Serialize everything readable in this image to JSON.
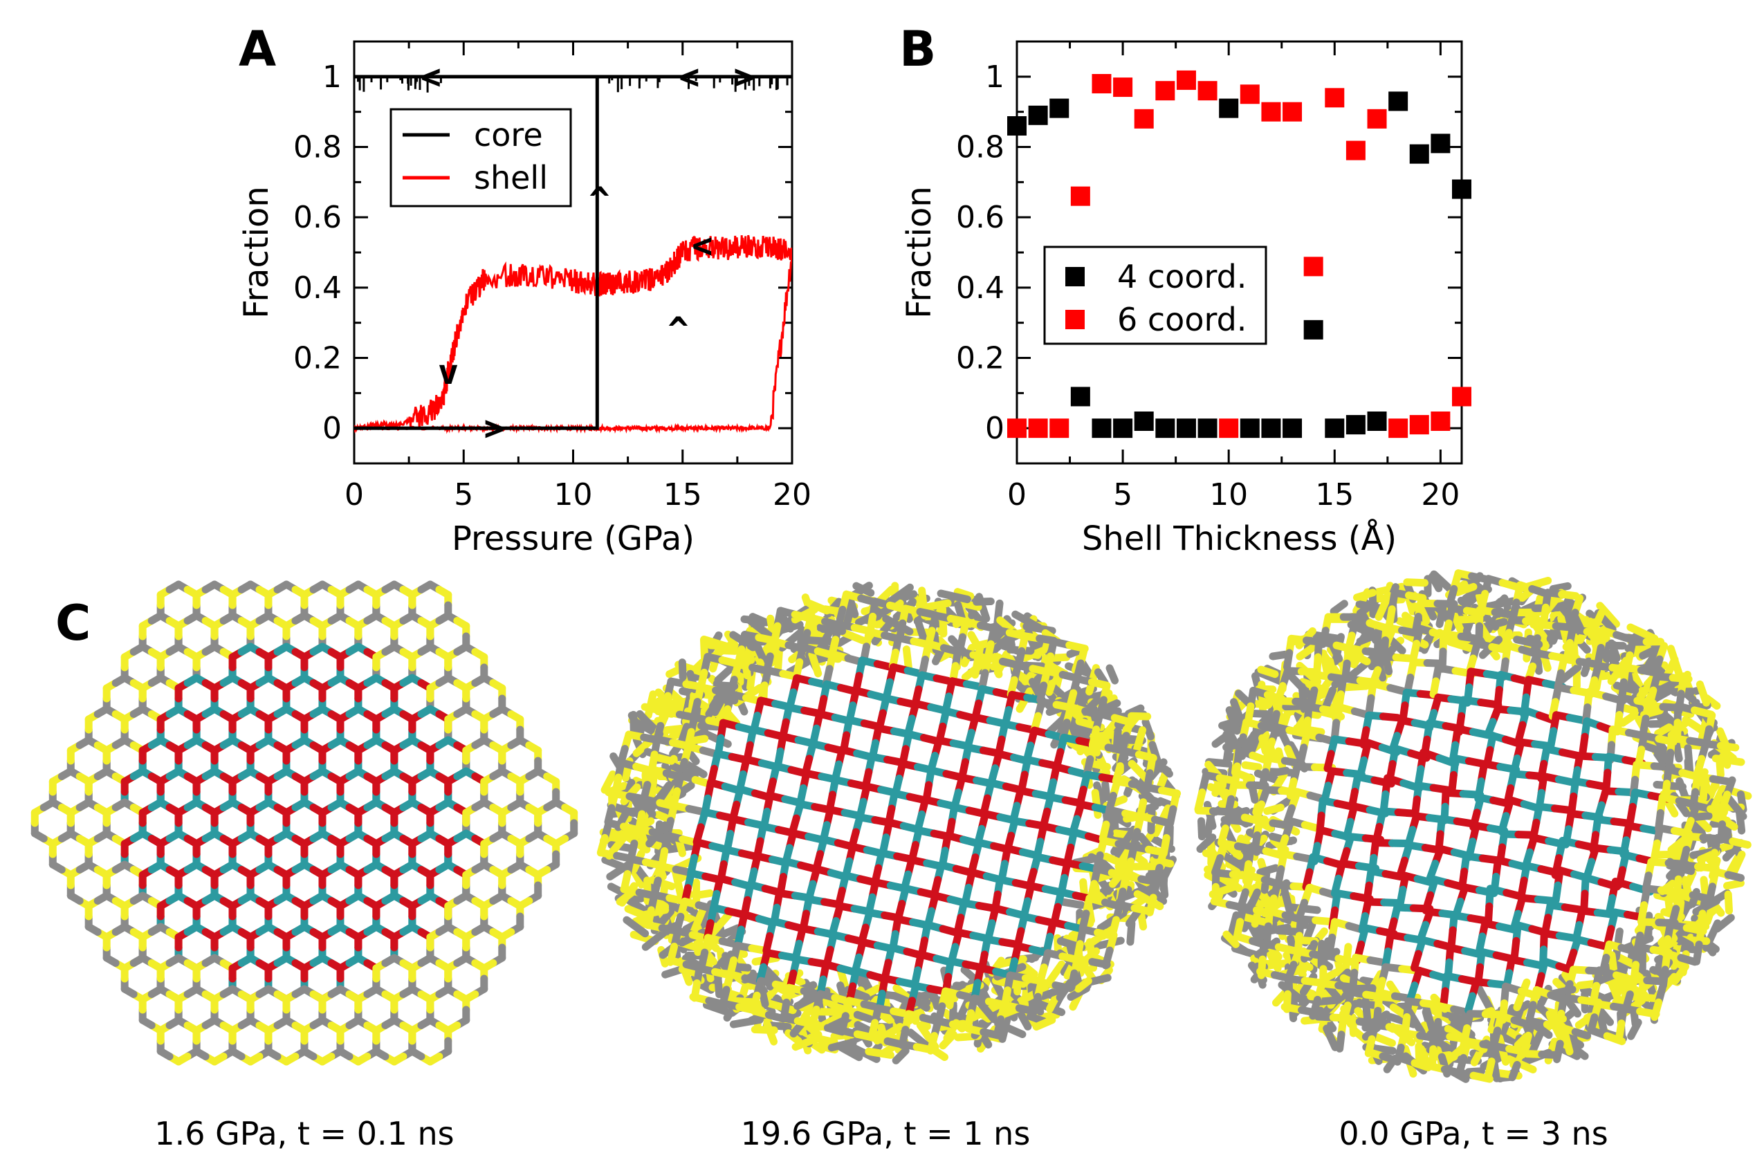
{
  "panels": {
    "a": {
      "letter": "A"
    },
    "b": {
      "letter": "B"
    },
    "c": {
      "letter": "C"
    }
  },
  "chart_data": [
    {
      "type": "line",
      "panel": "A",
      "xlabel": "Pressure (GPa)",
      "ylabel": "Fraction",
      "xlim": [
        0,
        20
      ],
      "ylim": [
        -0.1,
        1.1
      ],
      "xticks": [
        0,
        5,
        10,
        15,
        20
      ],
      "yticks": [
        0,
        0.2,
        0.4,
        0.6,
        0.8,
        1
      ],
      "xtick_labels": [
        "0",
        "5",
        "10",
        "15",
        "20"
      ],
      "ytick_labels": [
        "0",
        "0.2",
        "0.4",
        "0.6",
        "0.8",
        "1"
      ],
      "legend": "top-left",
      "colors": {
        "core": "#000000",
        "shell": "#ff0000"
      },
      "series": [
        {
          "name": "core",
          "color": "#000000",
          "x": [
            0,
            11.1,
            11.1,
            20,
            20,
            11.3,
            11.3,
            0
          ],
          "y": [
            0,
            0,
            1,
            1,
            1,
            1,
            1,
            1
          ]
        },
        {
          "name": "shell",
          "color": "#ff0000",
          "x": [
            0,
            4,
            4.5,
            5,
            6,
            7,
            8,
            9,
            10,
            11,
            12,
            13,
            14,
            15,
            16,
            17,
            18,
            19,
            20,
            19,
            18,
            17,
            16,
            15,
            14.5,
            14,
            13,
            12,
            11.5,
            11.1,
            10,
            8,
            6,
            5,
            4.3,
            4,
            3,
            2,
            1,
            0
          ],
          "y": [
            0,
            0,
            0,
            0,
            0,
            0,
            0,
            0,
            0,
            0,
            0,
            0,
            0,
            0,
            0,
            0,
            0,
            0,
            0.5,
            0.52,
            0.52,
            0.51,
            0.52,
            0.5,
            0.46,
            0.43,
            0.42,
            0.41,
            0.41,
            0.41,
            0.42,
            0.44,
            0.43,
            0.34,
            0.16,
            0.07,
            0.03,
            0.01,
            0.01,
            0.0
          ]
        }
      ],
      "arrows": [
        {
          "x": 3.5,
          "y": 1.0,
          "glyph": "<"
        },
        {
          "x": 15.3,
          "y": 1.0,
          "glyph": "<"
        },
        {
          "x": 17.8,
          "y": 1.0,
          "glyph": ">"
        },
        {
          "x": 6.4,
          "y": 0.0,
          "glyph": ">"
        },
        {
          "x": 4.3,
          "y": 0.16,
          "glyph": "v"
        },
        {
          "x": 14.8,
          "y": 0.28,
          "glyph": "^"
        },
        {
          "x": 11.2,
          "y": 0.65,
          "glyph": "^"
        },
        {
          "x": 15.9,
          "y": 0.52,
          "glyph": "<"
        }
      ]
    },
    {
      "type": "scatter",
      "panel": "B",
      "xlabel": "Shell Thickness (Å)",
      "ylabel": "Fraction",
      "xlim": [
        0,
        21
      ],
      "ylim": [
        -0.1,
        1.1
      ],
      "xticks": [
        0,
        5,
        10,
        15,
        20
      ],
      "yticks": [
        0,
        0.2,
        0.4,
        0.6,
        0.8,
        1
      ],
      "xtick_labels": [
        "0",
        "5",
        "10",
        "15",
        "20"
      ],
      "ytick_labels": [
        "0",
        "0.2",
        "0.4",
        "0.6",
        "0.8",
        "1"
      ],
      "legend": "center-left",
      "colors": {
        "4 coord.": "#000000",
        "6 coord.": "#ff0000"
      },
      "series": [
        {
          "name": "4 coord.",
          "color": "#000000",
          "x": [
            0,
            1,
            2,
            3,
            4,
            5,
            6,
            7,
            8,
            9,
            10,
            11,
            12,
            13,
            14,
            15,
            16,
            17,
            18,
            19,
            20,
            21
          ],
          "y": [
            0.86,
            0.89,
            0.91,
            0.09,
            0.0,
            0.0,
            0.02,
            0.0,
            0.0,
            0.0,
            0.91,
            0.0,
            0.0,
            0.0,
            0.28,
            0.0,
            0.01,
            0.02,
            0.93,
            0.78,
            0.81,
            0.68
          ]
        },
        {
          "name": "6 coord.",
          "color": "#ff0000",
          "x": [
            0,
            1,
            2,
            3,
            4,
            5,
            6,
            7,
            8,
            9,
            10,
            11,
            12,
            13,
            14,
            15,
            16,
            17,
            18,
            19,
            20,
            21
          ],
          "y": [
            0.0,
            0.0,
            0.0,
            0.66,
            0.98,
            0.97,
            0.88,
            0.96,
            0.99,
            0.96,
            0.0,
            0.95,
            0.9,
            0.9,
            0.46,
            0.94,
            0.79,
            0.88,
            0.0,
            0.01,
            0.02,
            0.09
          ]
        }
      ]
    }
  ],
  "snapshots": [
    {
      "caption": "1.6 GPa, t = 0.1 ns"
    },
    {
      "caption": "19.6 GPa, t = 1 ns"
    },
    {
      "caption": "0.0 GPa, t = 3 ns"
    }
  ],
  "atom_colors": {
    "shell_atom": "#f2ee2a",
    "shell_bond": "#8a8a8a",
    "core_atom": "#d0101c",
    "core_atom2": "#2c9aa0"
  }
}
